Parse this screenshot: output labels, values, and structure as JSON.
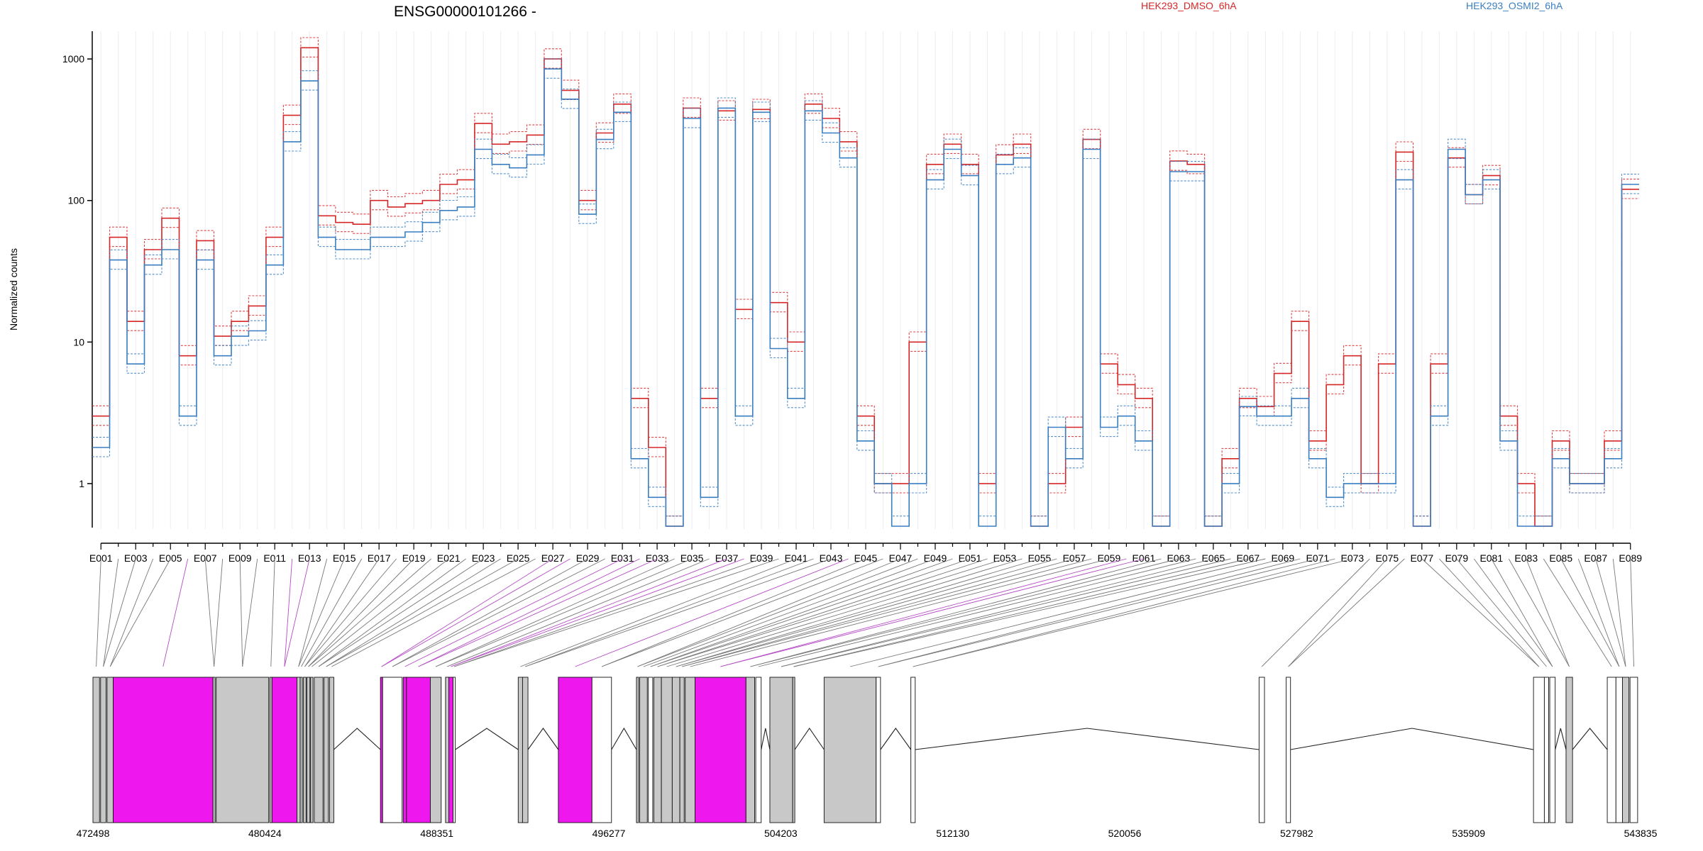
{
  "chart_data": {
    "type": "line",
    "title": "ENSG00000101266 -",
    "ylabel": "Normalized counts",
    "xlabel": "",
    "yscale": "log",
    "ylim": [
      0.5,
      1500
    ],
    "yticks": [
      1,
      10,
      100,
      1000
    ],
    "ytick_labels": [
      "1",
      "10",
      "100",
      "1000"
    ],
    "grid": "vertical",
    "legend": [
      {
        "name": "HEK293_DMSO_6hA",
        "color": "#d62728",
        "placement": "top-center-right"
      },
      {
        "name": "HEK293_OSMI2_6hA",
        "color": "#3a7fc1",
        "placement": "top-right"
      }
    ],
    "exon_labels": [
      "E001",
      "E003",
      "E005",
      "E007",
      "E009",
      "E011",
      "E013",
      "E015",
      "E017",
      "E019",
      "E021",
      "E023",
      "E025",
      "E027",
      "E029",
      "E031",
      "E033",
      "E035",
      "E037",
      "E039",
      "E041",
      "E043",
      "E045",
      "E047",
      "E049",
      "E051",
      "E053",
      "E055",
      "E057",
      "E059",
      "E061",
      "E063",
      "E065",
      "E067",
      "E069",
      "E071",
      "E073",
      "E075",
      "E077",
      "E079",
      "E081",
      "E083",
      "E085",
      "E087",
      "E089"
    ],
    "n_exons": 89,
    "series": [
      {
        "name": "HEK293_DMSO_6hA mean",
        "color": "#d62728",
        "values": [
          3,
          55,
          14,
          45,
          75,
          8,
          52,
          11,
          14,
          18,
          55,
          400,
          1200,
          78,
          70,
          68,
          100,
          90,
          95,
          100,
          130,
          140,
          350,
          250,
          260,
          290,
          1000,
          600,
          100,
          300,
          480,
          4,
          1.8,
          0.5,
          450,
          4,
          430,
          17,
          440,
          19,
          10,
          480,
          380,
          260,
          3,
          1,
          1,
          10,
          180,
          250,
          180,
          1,
          210,
          250,
          0.5,
          1,
          2.5,
          270,
          7,
          5,
          4,
          0.5,
          190,
          180,
          0.5,
          1.5,
          4,
          3.5,
          6,
          14,
          2,
          5,
          8,
          1,
          7,
          220,
          0.5,
          7,
          200,
          110,
          150,
          3,
          1,
          0.5,
          2,
          1,
          1,
          2,
          120
        ]
      },
      {
        "name": "HEK293_OSMI2_6hA mean",
        "color": "#3a7fc1",
        "values": [
          1.8,
          38,
          7,
          35,
          45,
          3,
          38,
          8,
          11,
          12,
          35,
          260,
          700,
          55,
          45,
          45,
          55,
          55,
          60,
          70,
          85,
          90,
          230,
          180,
          170,
          210,
          850,
          520,
          80,
          270,
          420,
          1.5,
          0.8,
          0.5,
          380,
          0.8,
          450,
          3,
          420,
          9,
          4,
          430,
          300,
          200,
          2,
          1,
          0.5,
          1,
          140,
          230,
          150,
          0.5,
          180,
          200,
          0.5,
          2.5,
          1.5,
          230,
          2.5,
          3,
          2,
          0.5,
          160,
          160,
          0.5,
          1,
          3.5,
          3,
          3,
          4,
          1.5,
          0.8,
          1,
          1,
          1,
          140,
          0.5,
          3,
          230,
          110,
          140,
          2,
          0.5,
          0.5,
          1.5,
          1,
          1,
          1.5,
          130
        ]
      }
    ],
    "gene_model": {
      "coordinate_ticks": [
        "472498",
        "480424",
        "488351",
        "496277",
        "504203",
        "512130",
        "520056",
        "527982",
        "535909",
        "543835"
      ],
      "coordinate_range": [
        472498,
        543835
      ],
      "exons": [
        [
          472498,
          472800,
          "gray"
        ],
        [
          472850,
          473100,
          "gray"
        ],
        [
          473150,
          473430,
          "gray"
        ],
        [
          473430,
          478030,
          "magenta"
        ],
        [
          478030,
          478130,
          "gray"
        ],
        [
          478180,
          480600,
          "gray"
        ],
        [
          480650,
          480750,
          "gray"
        ],
        [
          480750,
          481900,
          "magenta"
        ],
        [
          481900,
          482050,
          "gray"
        ],
        [
          482050,
          482150,
          "gray"
        ],
        [
          482200,
          482320,
          "gray"
        ],
        [
          482360,
          482500,
          "gray"
        ],
        [
          482530,
          482640,
          "gray"
        ],
        [
          482700,
          483100,
          "gray"
        ],
        [
          483150,
          483350,
          "gray"
        ],
        [
          483400,
          483600,
          "gray"
        ],
        [
          485750,
          485850,
          "magenta"
        ],
        [
          485850,
          486750,
          "white"
        ],
        [
          486800,
          486950,
          "magenta"
        ],
        [
          486950,
          488050,
          "magenta"
        ],
        [
          488050,
          488550,
          "gray"
        ],
        [
          488750,
          488900,
          "gray"
        ],
        [
          488900,
          489100,
          "magenta"
        ],
        [
          489100,
          489200,
          "white"
        ],
        [
          492100,
          492300,
          "gray"
        ],
        [
          492300,
          492550,
          "gray"
        ],
        [
          493950,
          495500,
          "magenta"
        ],
        [
          495500,
          496400,
          "white"
        ],
        [
          497550,
          497650,
          "gray"
        ],
        [
          497700,
          498050,
          "gray"
        ],
        [
          498100,
          498300,
          "white"
        ],
        [
          498350,
          498700,
          "gray"
        ],
        [
          498700,
          499200,
          "gray"
        ],
        [
          499200,
          499550,
          "gray"
        ],
        [
          499550,
          499750,
          "gray"
        ],
        [
          499800,
          500250,
          "gray"
        ],
        [
          500250,
          502600,
          "magenta"
        ],
        [
          502600,
          503000,
          "gray"
        ],
        [
          503050,
          503300,
          "white"
        ],
        [
          503700,
          504750,
          "gray"
        ],
        [
          504750,
          504850,
          "gray"
        ],
        [
          506200,
          508600,
          "gray"
        ],
        [
          508600,
          508800,
          "white"
        ],
        [
          510200,
          510400,
          "white"
        ],
        [
          526250,
          526500,
          "white"
        ],
        [
          527500,
          527700,
          "white"
        ],
        [
          538900,
          539400,
          "white"
        ],
        [
          539400,
          539600,
          "white"
        ],
        [
          539650,
          539900,
          "white"
        ],
        [
          540400,
          540700,
          "gray"
        ],
        [
          542300,
          542700,
          "white"
        ],
        [
          542700,
          543000,
          "white"
        ],
        [
          543000,
          543300,
          "gray"
        ],
        [
          543350,
          543700,
          "white"
        ]
      ],
      "introns": [
        [
          483600,
          485750
        ],
        [
          489200,
          492100
        ],
        [
          492550,
          493950
        ],
        [
          496400,
          497550
        ],
        [
          503300,
          503700
        ],
        [
          504850,
          506200
        ],
        [
          508800,
          510200
        ],
        [
          510400,
          526250
        ],
        [
          527700,
          538900
        ],
        [
          539900,
          540400
        ],
        [
          540700,
          542300
        ]
      ],
      "colors": {
        "gray": "#c8c8c8",
        "magenta": "#ee18ee",
        "white": "#ffffff"
      }
    }
  }
}
